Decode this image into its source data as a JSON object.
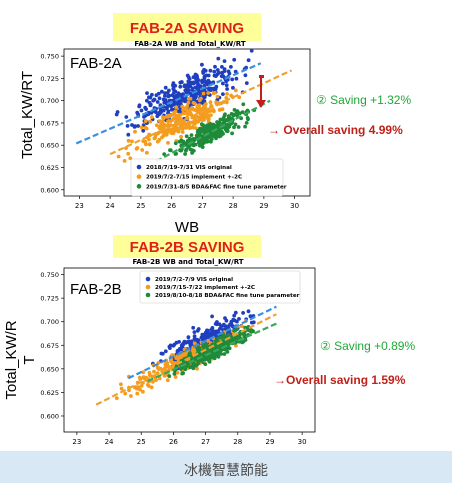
{
  "colors": {
    "banner_bg": "#ffff99",
    "banner_text": "#e0201a",
    "original": "#1f3fbf",
    "implement": "#f39c1e",
    "finetune": "#1e8a3a",
    "saving_green": "#1fa836",
    "overall_red": "#c0201a",
    "footer_bg": "#d9e8f5"
  },
  "footer": {
    "text": "冰機智慧節能"
  },
  "chart_data": [
    {
      "type": "scatter",
      "banner": "FAB-2A  SAVING",
      "title": "FAB-2A WB and Total_KW/RT",
      "inner_label": "FAB-2A",
      "xlabel": "WB",
      "ylabel": "Total_KW/RT",
      "xlim": [
        22.5,
        30.5
      ],
      "ylim": [
        0.593,
        0.758
      ],
      "x_ticks": [
        "23",
        "24",
        "25",
        "26",
        "27",
        "28",
        "29",
        "30"
      ],
      "y_ticks": [
        "0.600",
        "0.625",
        "0.650",
        "0.675",
        "0.700",
        "0.725",
        "0.750"
      ],
      "legend_position": "bottom-center",
      "series": [
        {
          "name": "2018/7/19-7/31 VIS original",
          "color": "#1f3fbf",
          "trend": [
            [
              22.9,
              0.652
            ],
            [
              28.9,
              0.742
            ]
          ]
        },
        {
          "name": "2019/7/2-7/15 implement +-2C",
          "color": "#f39c1e",
          "trend": [
            [
              24.0,
              0.64
            ],
            [
              29.9,
              0.734
            ]
          ]
        },
        {
          "name": "2019/7/31-8/5 BDA&FAC fine tune parameter",
          "color": "#1e8a3a",
          "trend": [
            [
              25.5,
              0.632
            ],
            [
              29.2,
              0.7
            ]
          ]
        }
      ],
      "annotations": [
        {
          "text": "② Saving +1.32%",
          "color": "#1fa836"
        },
        {
          "text": "→ Overall saving 4.99%",
          "color": "#c0201a"
        }
      ]
    },
    {
      "type": "scatter",
      "banner": "FAB-2B  SAVING",
      "title": "FAB-2B WB and Total_KW/RT",
      "inner_label": "FAB-2B",
      "xlabel": "",
      "ylabel": "Total_KW/RT",
      "xlim": [
        22.6,
        30.4
      ],
      "ylim": [
        0.583,
        0.757
      ],
      "x_ticks": [
        "23",
        "24",
        "25",
        "26",
        "27",
        "28",
        "29",
        "30"
      ],
      "y_ticks": [
        "0.600",
        "0.625",
        "0.650",
        "0.675",
        "0.700",
        "0.725",
        "0.750"
      ],
      "legend_position": "top-center",
      "series": [
        {
          "name": "2019/7/2-7/9 VIS original",
          "color": "#1f3fbf",
          "trend": [
            [
              24.6,
              0.64
            ],
            [
              29.2,
              0.716
            ]
          ]
        },
        {
          "name": "2019/7/15-7/22 implement +-2C",
          "color": "#f39c1e",
          "trend": [
            [
              23.6,
              0.612
            ],
            [
              29.2,
              0.708
            ]
          ]
        },
        {
          "name": "2019/8/10-8/18 BDA&FAC fine tune parameter",
          "color": "#1e8a3a",
          "trend": [
            [
              25.2,
              0.637
            ],
            [
              29.2,
              0.698
            ]
          ]
        }
      ],
      "annotations": [
        {
          "text": "② Saving +0.89%",
          "color": "#1fa836"
        },
        {
          "text": "→Overall saving 1.59%",
          "color": "#c0201a"
        }
      ]
    }
  ]
}
